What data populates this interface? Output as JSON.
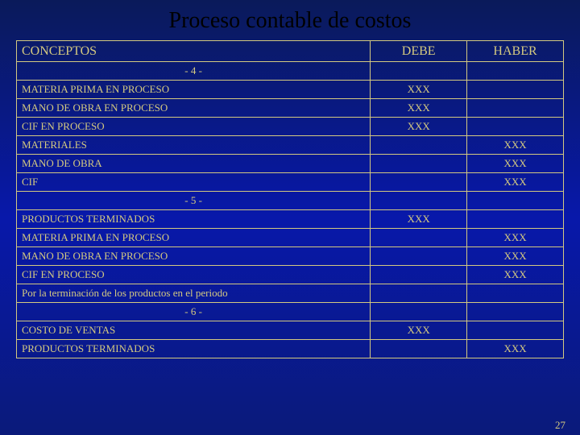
{
  "title": "Proceso contable de costos",
  "headers": {
    "conceptos": "CONCEPTOS",
    "debe": "DEBE",
    "haber": "HABER"
  },
  "sep4": "- 4 -",
  "sep5": "- 5 -",
  "sep6": "- 6 -",
  "r1": {
    "c": "MATERIA PRIMA EN PROCESO",
    "d": "XXX",
    "h": ""
  },
  "r2": {
    "c": "MANO DE OBRA EN PROCESO",
    "d": "XXX",
    "h": ""
  },
  "r3": {
    "c": "CIF EN PROCESO",
    "d": "XXX",
    "h": ""
  },
  "r4": {
    "c": "MATERIALES",
    "d": "",
    "h": "XXX"
  },
  "r5": {
    "c": "MANO DE OBRA",
    "d": "",
    "h": "XXX"
  },
  "r6": {
    "c": "CIF",
    "d": "",
    "h": "XXX"
  },
  "r7": {
    "c": "PRODUCTOS TERMINADOS",
    "d": "XXX",
    "h": ""
  },
  "r8": {
    "c": "MATERIA PRIMA EN  PROCESO",
    "d": "",
    "h": "XXX"
  },
  "r9": {
    "c": "MANO DE OBRA EN PROCESO",
    "d": "",
    "h": "XXX"
  },
  "r10": {
    "c": "CIF EN PROCESO",
    "d": "",
    "h": "XXX"
  },
  "r11": {
    "c": "Por la terminación de los productos en el periodo",
    "d": "",
    "h": ""
  },
  "r12": {
    "c": "COSTO DE VENTAS",
    "d": "XXX",
    "h": ""
  },
  "r13": {
    "c": "PRODUCTOS TERMINADOS",
    "d": "",
    "h": "XXX"
  },
  "pagenum": "27"
}
